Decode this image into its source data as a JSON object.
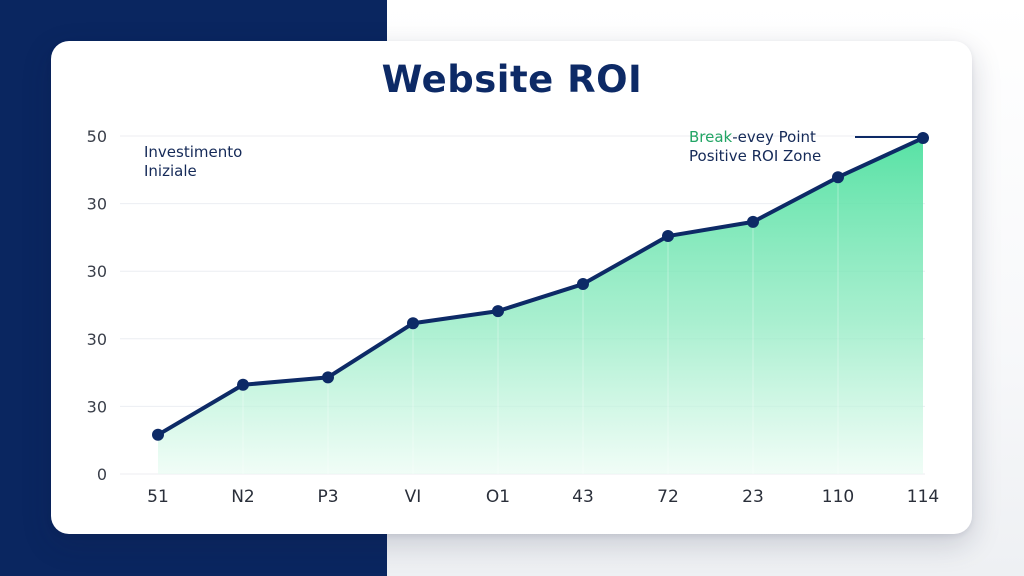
{
  "title": "Website ROI",
  "annotations": {
    "initial_investment_line1": "Investimento",
    "initial_investment_line2": "Iniziale",
    "break_even_green": "Break",
    "break_even_rest": "-evey Point",
    "positive_zone": "Positive ROI Zone"
  },
  "colors": {
    "navy": "#0a2660",
    "line": "#0d2a66",
    "area_top": "#4fe0a0",
    "area_bottom": "#eafcf3",
    "green_text": "#22a565"
  },
  "chart_data": {
    "type": "area",
    "title": "Website ROI",
    "xlabel": "",
    "ylabel": "",
    "categories": [
      "51",
      "N2",
      "P3",
      "VI",
      "O1",
      "43",
      "72",
      "23",
      "110",
      "114"
    ],
    "y_tick_labels": [
      "0",
      "30",
      "30",
      "30",
      "30",
      "50"
    ],
    "ylim": [
      0,
      50
    ],
    "grid": true,
    "legend": null,
    "series": [
      {
        "name": "ROI",
        "values": [
          5.8,
          13.2,
          14.3,
          22.3,
          24.1,
          28.1,
          35.2,
          37.3,
          43.9,
          49.7
        ]
      }
    ],
    "annotations": [
      {
        "text": "Investimento Iniziale",
        "position": "top-left"
      },
      {
        "text": "Break-evey Point",
        "position": "top-right",
        "points_to_index": 9
      },
      {
        "text": "Positive ROI Zone",
        "position": "top-right"
      }
    ]
  }
}
